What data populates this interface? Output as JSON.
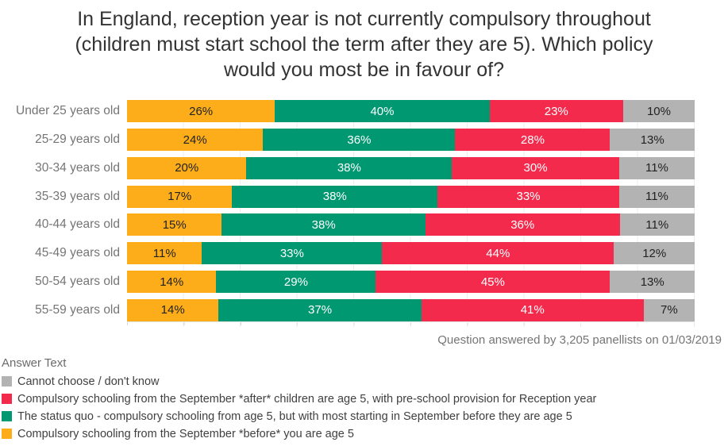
{
  "title": {
    "lines": [
      "In England, reception year is not currently compulsory throughout",
      "(children must start school the term after they are 5). Which policy",
      "would you most be in favour of?"
    ]
  },
  "footnote": "Question answered by 3,205 panellists on 01/03/2019",
  "legend": {
    "title": "Answer Text",
    "items": [
      {
        "label": "Cannot choose / don't know",
        "color": "#b3b3b3"
      },
      {
        "label": "Compulsory schooling from the September *after* children are age 5, with pre-school provision for Reception year",
        "color": "#f42a4c"
      },
      {
        "label": "The status quo - compulsory schooling from age 5, but with most starting in September before they are age 5",
        "color": "#009870"
      },
      {
        "label": "Compulsory schooling from the September *before* you are age 5",
        "color": "#fcad19"
      }
    ]
  },
  "chart_data": {
    "type": "bar",
    "orientation": "horizontal-stacked",
    "title": "In England, reception year is not currently compulsory throughout (children must start school the term after they are 5). Which policy would you most be in favour of?",
    "categories": [
      "Under 25 years old",
      "25-29 years old",
      "30-34 years old",
      "35-39 years old",
      "40-44 years old",
      "45-49 years old",
      "50-54 years old",
      "55-59 years old"
    ],
    "series": [
      {
        "name": "Compulsory schooling from the September *before* you are age 5",
        "color": "#fcad19",
        "label_color": "#222222",
        "values": [
          26,
          24,
          20,
          17,
          15,
          11,
          14,
          14
        ]
      },
      {
        "name": "The status quo - compulsory schooling from age 5, but with most starting in September before they are age 5",
        "color": "#009870",
        "label_color": "#ffffff",
        "values": [
          40,
          36,
          38,
          38,
          38,
          33,
          29,
          37
        ]
      },
      {
        "name": "Compulsory schooling from the September *after* children are age 5, with pre-school provision for Reception year",
        "color": "#f42a4c",
        "label_color": "#ffffff",
        "values": [
          23,
          28,
          30,
          33,
          36,
          44,
          45,
          41
        ]
      },
      {
        "name": "Cannot choose / don't know",
        "color": "#b3b3b3",
        "label_color": "#222222",
        "values": [
          10,
          13,
          11,
          11,
          11,
          12,
          13,
          7
        ]
      }
    ],
    "value_suffix": "%",
    "xlim": [
      0,
      100
    ],
    "gridlines": "vertical every 10%, ticks on bottom axis",
    "legend_position": "bottom-left"
  }
}
